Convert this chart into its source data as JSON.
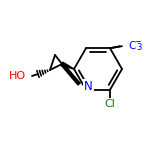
{
  "bg_color": "#ffffff",
  "bond_color": "#000000",
  "atom_colors": {
    "N": "#0000ff",
    "O": "#ff0000",
    "F": "#0000ff",
    "Cl": "#008000",
    "C": "#000000",
    "H": "#000000"
  },
  "figsize": [
    1.52,
    1.52
  ],
  "dpi": 100,
  "lw": 1.3
}
